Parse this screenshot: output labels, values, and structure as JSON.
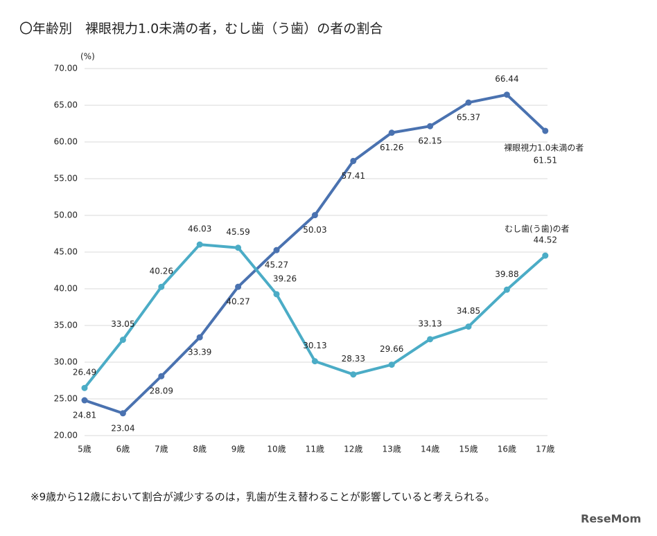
{
  "chart_data": {
    "type": "line",
    "title": "〇年齢別　裸眼視力1.0未満の者，むし歯（う歯）の者の割合",
    "y_label": "(%)",
    "note": "※9歳から12歳において割合が減少するのは，乳歯が生え替わることが影響していると考えられる。",
    "watermark": "ReseMom",
    "categories": [
      "5歳",
      "6歳",
      "7歳",
      "8歳",
      "9歳",
      "10歳",
      "11歳",
      "12歳",
      "13歳",
      "14歳",
      "15歳",
      "16歳",
      "17歳"
    ],
    "series": [
      {
        "name": "裸眼視力1.0未満の者",
        "color": "#4a72b0",
        "values": [
          24.81,
          23.04,
          28.09,
          33.39,
          40.27,
          45.27,
          50.03,
          57.41,
          61.26,
          62.15,
          65.37,
          66.44,
          61.51
        ]
      },
      {
        "name": "むし歯(う歯)の者",
        "color": "#4bacc6",
        "values": [
          26.49,
          33.05,
          40.26,
          46.03,
          45.59,
          39.26,
          30.13,
          28.33,
          29.66,
          33.13,
          34.85,
          39.88,
          44.52
        ]
      }
    ],
    "ylim": [
      20,
      70
    ],
    "yticks": [
      {
        "value": 20,
        "label": "20.00"
      },
      {
        "value": 25,
        "label": "25.00"
      },
      {
        "value": 30,
        "label": "30.00"
      },
      {
        "value": 35,
        "label": "35.00"
      },
      {
        "value": 40,
        "label": "40.00"
      },
      {
        "value": 45,
        "label": "45.00"
      },
      {
        "value": 50,
        "label": "50.00"
      },
      {
        "value": 55,
        "label": "55.00"
      },
      {
        "value": 60,
        "label": "60.00"
      },
      {
        "value": 65,
        "label": "65.00"
      },
      {
        "value": 70,
        "label": "70.00"
      }
    ],
    "grid": true
  }
}
